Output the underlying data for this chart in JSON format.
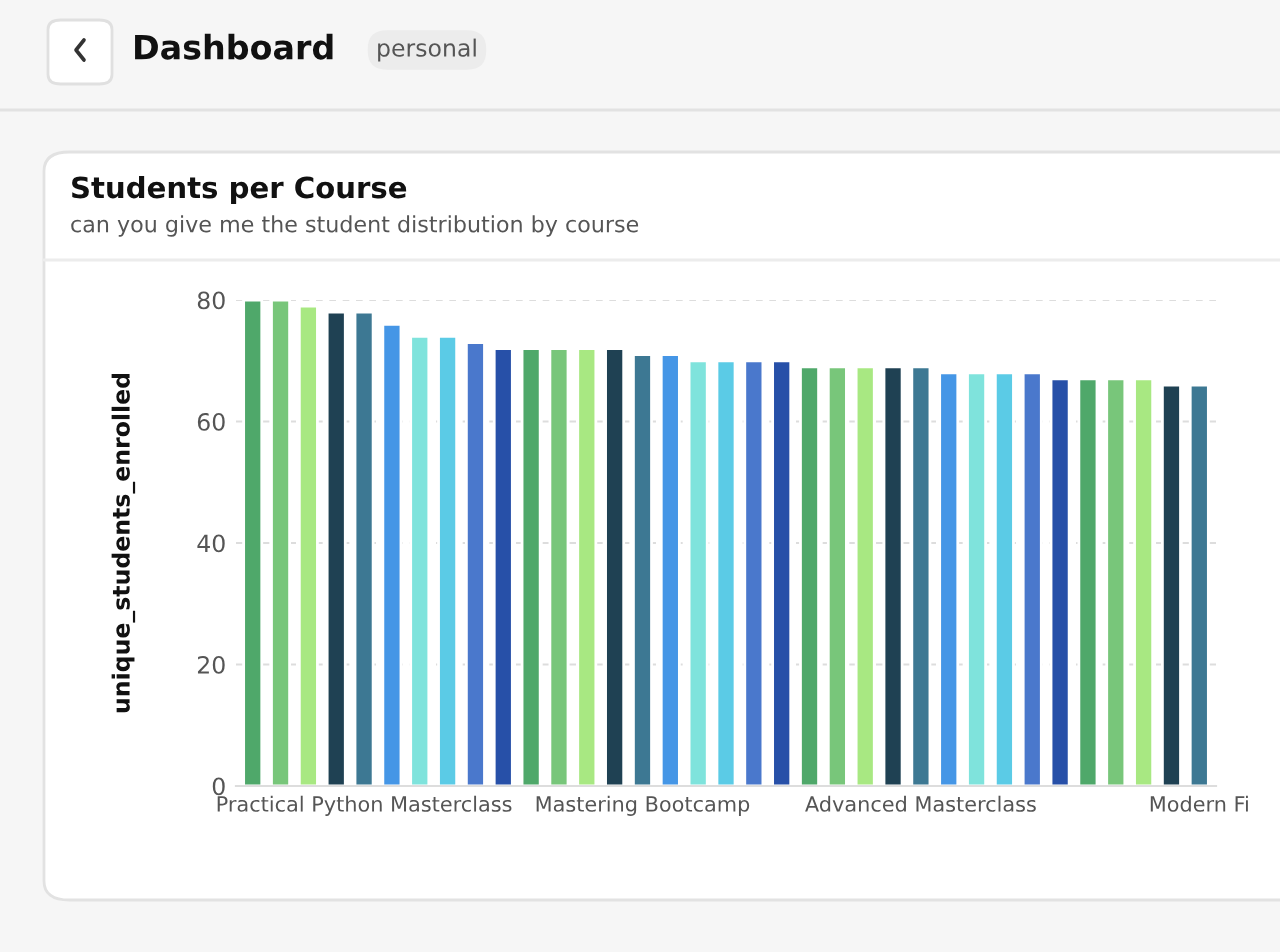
{
  "chart_data": {
    "type": "bar",
    "title": "Students per Course",
    "subtitle": "can you give me the student distribution by course",
    "ylabel": "unique_students_enrolled",
    "annotations": [
      "Dashboard",
      "personal"
    ],
    "categories": [
      null,
      null,
      null,
      null,
      "Practical Python Masterclass",
      null,
      null,
      null,
      null,
      null,
      null,
      null,
      null,
      null,
      "Mastering Bootcamp",
      null,
      null,
      null,
      null,
      null,
      null,
      null,
      null,
      null,
      "Advanced Masterclass",
      null,
      null,
      null,
      null,
      null,
      null,
      null,
      null,
      null,
      "Modern Fi"
    ],
    "values": [
      80,
      80,
      79,
      78,
      78,
      76,
      74,
      74,
      73,
      72,
      72,
      72,
      72,
      72,
      71,
      71,
      70,
      70,
      70,
      70,
      69,
      69,
      69,
      69,
      69,
      68,
      68,
      68,
      68,
      67,
      67,
      67,
      67,
      66,
      66
    ],
    "colors": [
      "#4fa86a",
      "#78c67a",
      "#a8e882",
      "#1f4153",
      "#3d7893",
      "#4596e6",
      "#7fe3dc",
      "#5bcbe6",
      "#4a78cc",
      "#2750a8",
      "#4fa86a",
      "#78c67a",
      "#a8e882",
      "#1f4153",
      "#3d7893",
      "#4596e6",
      "#7fe3dc",
      "#5bcbe6",
      "#4a78cc",
      "#2750a8",
      "#4fa86a",
      "#78c67a",
      "#a8e882",
      "#1f4153",
      "#3d7893",
      "#4596e6",
      "#7fe3dc",
      "#5bcbe6",
      "#4a78cc",
      "#2750a8",
      "#4fa86a",
      "#78c67a",
      "#a8e882",
      "#1f4153",
      "#3d7893"
    ],
    "ylim": [
      0,
      80
    ],
    "yticks": [
      0,
      20,
      40,
      60,
      80
    ],
    "grid": "y"
  }
}
